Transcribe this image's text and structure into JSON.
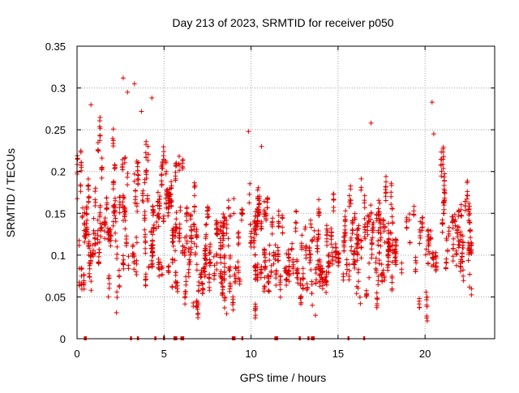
{
  "chart_data": {
    "type": "scatter",
    "title": "Day 213 of 2023, SRMTID for receiver p050",
    "xlabel": "GPS time / hours",
    "ylabel": "SRMTID / TECUs",
    "xlim": [
      0,
      24
    ],
    "ylim": [
      0,
      0.35
    ],
    "grid": true,
    "marker": "+",
    "series_color": "#e00000",
    "x_ticks": [
      0,
      5,
      10,
      15,
      20
    ],
    "x_tick_labels": [
      "0",
      "5",
      "10",
      "15",
      "20"
    ],
    "y_ticks": [
      0,
      0.05,
      0.1,
      0.15,
      0.2,
      0.25,
      0.3,
      0.35
    ],
    "y_tick_labels": [
      "0",
      "0.05",
      "0.1",
      "0.15",
      "0.2",
      "0.25",
      "0.3",
      "0.35"
    ],
    "x_range_of_data": [
      0.0,
      22.7
    ],
    "trend_estimate": {
      "hours": [
        0,
        1,
        2,
        3,
        4,
        5,
        6,
        7,
        8,
        9,
        10,
        11,
        12,
        13,
        14,
        15,
        16,
        17,
        18,
        19,
        20,
        21,
        22,
        22.7
      ],
      "median_srmtid": [
        0.15,
        0.13,
        0.15,
        0.17,
        0.16,
        0.14,
        0.13,
        0.11,
        0.1,
        0.11,
        0.12,
        0.11,
        0.1,
        0.09,
        0.1,
        0.1,
        0.11,
        0.13,
        0.12,
        0.11,
        0.09,
        0.13,
        0.12,
        0.12
      ],
      "spread": [
        0.05,
        0.05,
        0.06,
        0.07,
        0.06,
        0.05,
        0.05,
        0.04,
        0.04,
        0.04,
        0.05,
        0.04,
        0.04,
        0.03,
        0.04,
        0.04,
        0.04,
        0.05,
        0.04,
        0.04,
        0.04,
        0.05,
        0.04,
        0.04
      ]
    },
    "notable_points": [
      {
        "x": 2.65,
        "y": 0.312
      },
      {
        "x": 3.3,
        "y": 0.305
      },
      {
        "x": 2.9,
        "y": 0.295
      },
      {
        "x": 0.8,
        "y": 0.28
      },
      {
        "x": 4.3,
        "y": 0.288
      },
      {
        "x": 3.7,
        "y": 0.272
      },
      {
        "x": 9.85,
        "y": 0.248
      },
      {
        "x": 16.9,
        "y": 0.258
      },
      {
        "x": 20.4,
        "y": 0.283
      },
      {
        "x": 20.5,
        "y": 0.245
      },
      {
        "x": 10.6,
        "y": 0.23
      },
      {
        "x": 1.8,
        "y": 0.05
      },
      {
        "x": 8.6,
        "y": 0.03
      },
      {
        "x": 13.7,
        "y": 0.028
      },
      {
        "x": 20.1,
        "y": 0.025
      }
    ],
    "zero_points_x": [
      0.45,
      0.5,
      3.1,
      3.5,
      4.5,
      5.0,
      5.6,
      5.7,
      6.0,
      6.1,
      8.95,
      9.05,
      9.5,
      11.4,
      11.5,
      12.8,
      13.3,
      13.5,
      13.6,
      15.6,
      16.5
    ]
  }
}
